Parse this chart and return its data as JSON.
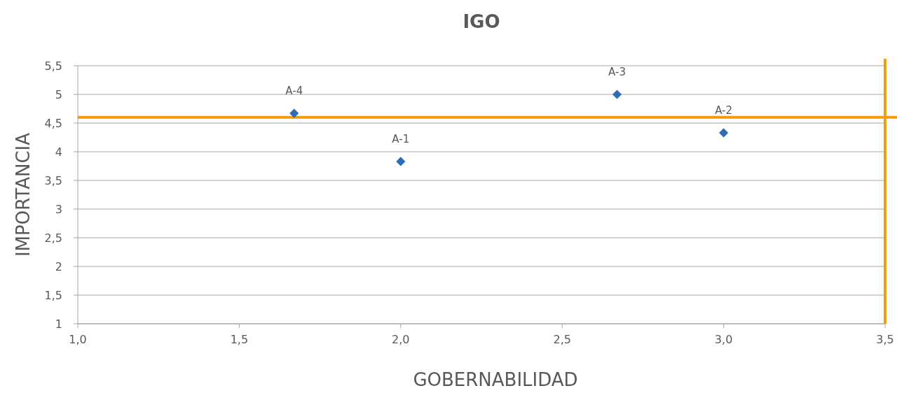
{
  "chart_data": {
    "type": "scatter",
    "title": "IGO",
    "xlabel": "GOBERNABILIDAD",
    "ylabel": "IMPORTANCIA",
    "x": [
      1.67,
      2.0,
      2.67,
      3.0
    ],
    "series": [
      {
        "color": "#2e6db4",
        "values": [
          4.67,
          3.83,
          5.0,
          4.33
        ]
      }
    ],
    "marker": "diamond",
    "grid": "y",
    "xlim": [
      1.0,
      3.5
    ],
    "ylim": [
      1,
      5.5
    ],
    "xticks": [
      {
        "value": 1,
        "label": "1,0"
      },
      {
        "value": 1.5,
        "label": "1,5"
      },
      {
        "value": 2,
        "label": "2,0"
      },
      {
        "value": 2.5,
        "label": "2,5"
      },
      {
        "value": 3,
        "label": "3,0"
      },
      {
        "value": 3.5,
        "label": "3,5"
      }
    ],
    "yticks": [
      1,
      {
        "value": 1.5,
        "label": "1,5"
      },
      2,
      {
        "value": 2.5,
        "label": "2,5"
      },
      3,
      {
        "value": 3.5,
        "label": "3,5"
      },
      4,
      {
        "value": 4.5,
        "label": "4,5"
      },
      5,
      {
        "value": 5.5,
        "label": "5,5"
      }
    ],
    "ref_lines": [
      {
        "axis": "y",
        "value": 4.6,
        "color": "#f39c12"
      },
      {
        "axis": "x",
        "value": 3.5,
        "color": "#f39c12"
      }
    ],
    "annotations": [
      {
        "text": "A-4",
        "x": 1.67,
        "y": 4.67
      },
      {
        "text": "A-1",
        "x": 2.0,
        "y": 3.83
      },
      {
        "text": "A-3",
        "x": 2.67,
        "y": 5.0
      },
      {
        "text": "A-2",
        "x": 3.0,
        "y": 4.33
      }
    ]
  }
}
